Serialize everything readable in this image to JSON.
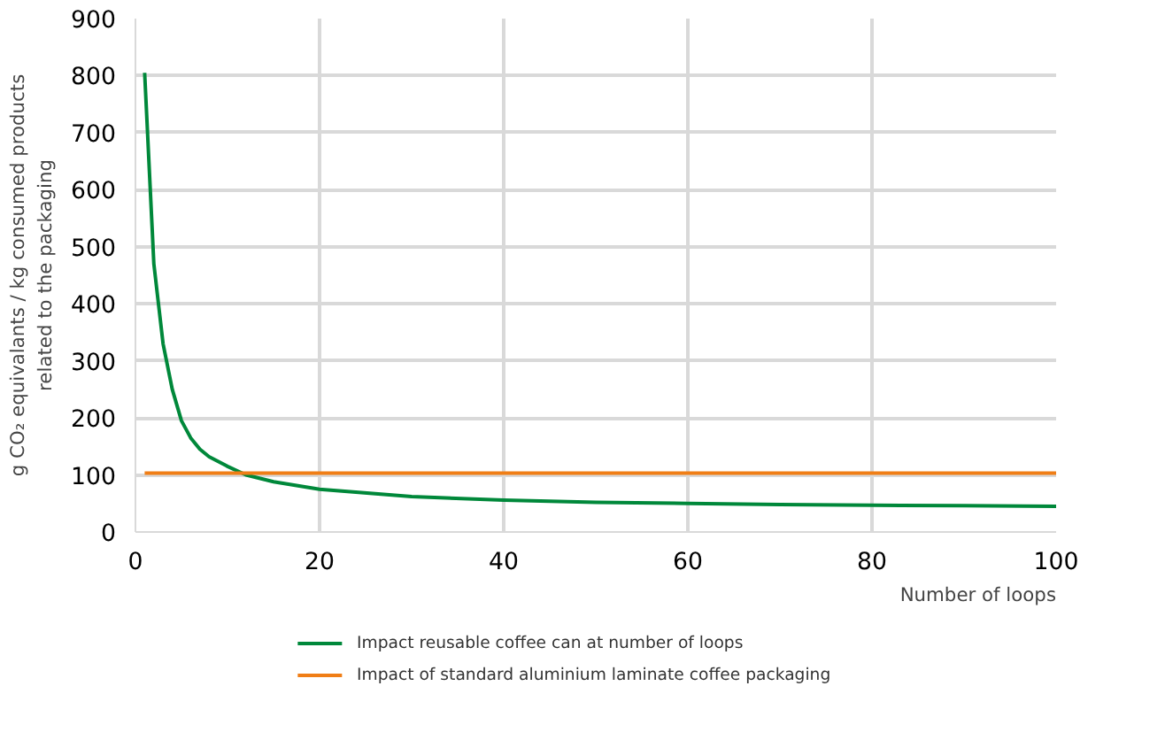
{
  "chart_data": {
    "type": "line",
    "ylabel": "g CO₂ equivalants / kg consumed products\nrelated to the packaging",
    "xlabel": "Number of loops",
    "xlim": [
      0,
      100
    ],
    "xticks": [
      0,
      20,
      40,
      60,
      80,
      100
    ],
    "ylim": [
      0,
      900
    ],
    "yticks": [
      0,
      100,
      200,
      300,
      400,
      500,
      600,
      700,
      800,
      900
    ],
    "grid": true,
    "legend": "bottom",
    "marker": "none",
    "line_style": "solid",
    "series": [
      {
        "name": "Impact reusable coffee can at number of loops",
        "color": "#00883a",
        "x": [
          1,
          2,
          3,
          4,
          5,
          6,
          7,
          8,
          10,
          12,
          15,
          20,
          30,
          40,
          50,
          60,
          70,
          80,
          90,
          100
        ],
        "values": [
          805,
          470,
          330,
          250,
          195,
          165,
          145,
          132,
          115,
          100,
          88,
          75,
          62,
          56,
          52,
          50,
          48,
          47,
          46,
          45
        ]
      },
      {
        "name": "Impact of standard aluminium laminate coffee packaging",
        "color": "#f07e16",
        "x": [
          1,
          100
        ],
        "values": [
          103,
          103
        ]
      }
    ]
  }
}
